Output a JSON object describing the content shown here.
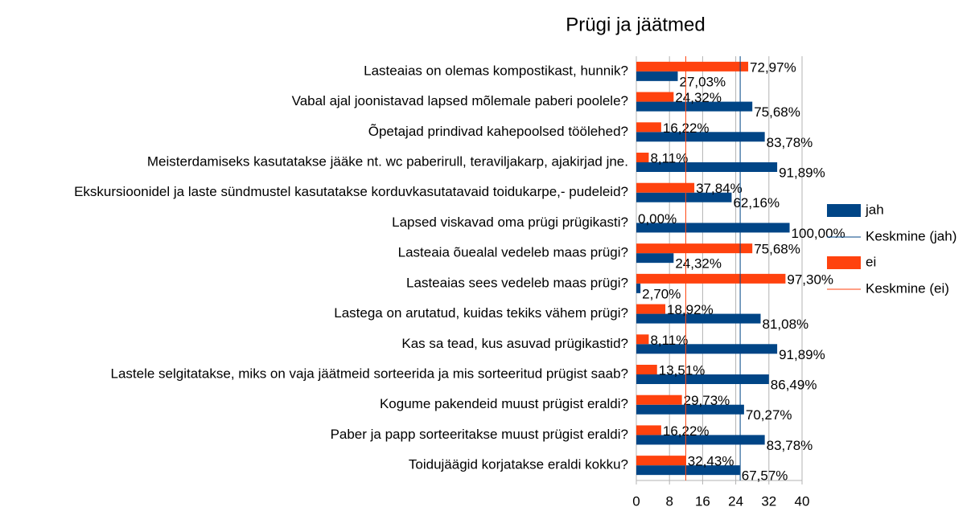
{
  "chart_data": {
    "type": "bar",
    "orientation": "horizontal",
    "title": "Prügi ja jäätmed",
    "categories": [
      "Lasteaias on olemas kompostikast, hunnik?",
      "Vabal ajal joonistavad lapsed mõlemale paberi poolele?",
      "Õpetajad prindivad kahepoolsed töölehed?",
      "Meisterdamiseks kasutatakse jääke nt. wc paberirull, teraviljakarp, ajakirjad jne.",
      "Ekskursioonidel ja laste sündmustel kasutatakse korduvkasutatavaid toidukarpe,- pudeleid?",
      "Lapsed viskavad oma prügi prügikasti?",
      "Lasteaia õuealal vedeleb maas prügi?",
      "Lasteaias sees vedeleb maas prügi?",
      "Lastega on arutatud, kuidas tekiks vähem prügi?",
      "Kas sa tead, kus asuvad prügikastid?",
      "Lastele selgitatakse, miks on vaja jäätmeid sorteerida ja mis sorteeritud prügist saab?",
      "Kogume pakendeid muust prügist eraldi?",
      "Paber ja papp sorteeritakse muust prügist eraldi?",
      "Toidujäägid korjatakse eraldi kokku?"
    ],
    "series": [
      {
        "name": "jah",
        "color": "#004586",
        "values": [
          10,
          28,
          31,
          34,
          23,
          37,
          9,
          1,
          30,
          34,
          32,
          26,
          31,
          25
        ],
        "value_labels": [
          "27,03%",
          "75,68%",
          "83,78%",
          "91,89%",
          "62,16%",
          "100,00%",
          "24,32%",
          "2,70%",
          "81,08%",
          "91,89%",
          "86,49%",
          "70,27%",
          "83,78%",
          "67,57%"
        ]
      },
      {
        "name": "ei",
        "color": "#ff420e",
        "values": [
          27,
          9,
          6,
          3,
          14,
          0,
          28,
          36,
          7,
          3,
          5,
          11,
          6,
          12
        ],
        "value_labels": [
          "72,97%",
          "24,32%",
          "16,22%",
          "8,11%",
          "37,84%",
          "0,00%",
          "75,68%",
          "97,30%",
          "18,92%",
          "8,11%",
          "13,51%",
          "29,73%",
          "16,22%",
          "32,43%"
        ]
      }
    ],
    "mean_lines": [
      {
        "name": "Keskmine (jah)",
        "color": "#004586",
        "value": 25.07
      },
      {
        "name": "Keskmine (ei)",
        "color": "#ff420e",
        "value": 11.93
      }
    ],
    "xlim": [
      0,
      40
    ],
    "xticks": [
      0,
      8,
      16,
      24,
      32,
      40
    ],
    "grid": true
  }
}
